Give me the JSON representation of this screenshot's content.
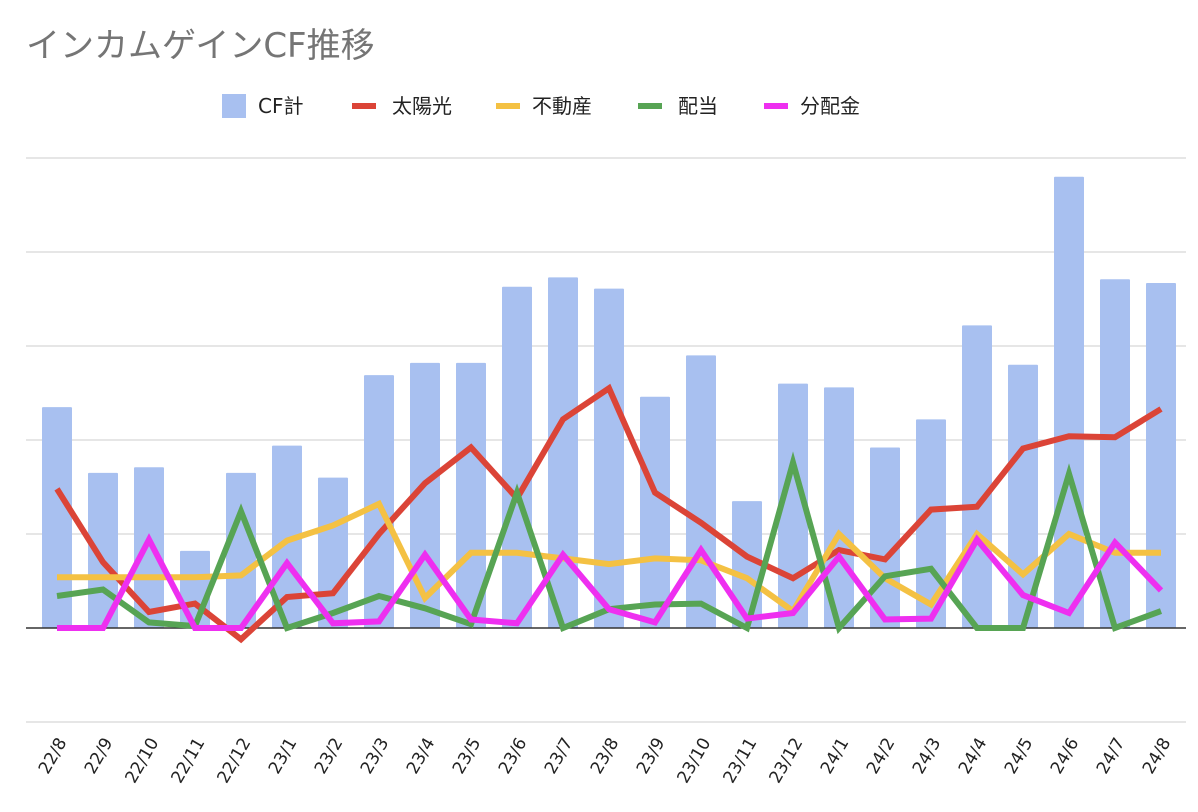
{
  "chart_data": {
    "type": "bar+line",
    "title": "インカムゲインCF推移",
    "categories": [
      "22/8",
      "22/9",
      "22/10",
      "22/11",
      "22/12",
      "23/1",
      "23/2",
      "23/3",
      "23/4",
      "23/5",
      "23/6",
      "23/7",
      "23/8",
      "23/9",
      "23/10",
      "23/11",
      "23/12",
      "24/1",
      "24/2",
      "24/3",
      "24/4",
      "24/5",
      "24/6",
      "24/7",
      "24/8"
    ],
    "ylim": [
      -1,
      5
    ],
    "gridlines": [
      -1,
      0,
      1,
      2,
      3,
      4,
      5
    ],
    "y_tick_labels_visible": false,
    "legend_position": "top",
    "series": [
      {
        "name": "CF計",
        "type": "bar",
        "color": "#a8c0f0",
        "values": [
          2.35,
          1.65,
          1.71,
          0.82,
          1.65,
          1.94,
          1.6,
          2.69,
          2.82,
          2.82,
          3.63,
          3.73,
          3.61,
          2.46,
          2.9,
          1.35,
          2.6,
          2.56,
          1.92,
          2.22,
          3.22,
          2.8,
          4.8,
          3.71,
          3.67
        ]
      },
      {
        "name": "太陽光",
        "type": "line",
        "color": "#db4437",
        "values": [
          1.48,
          0.7,
          0.17,
          0.26,
          -0.12,
          0.33,
          0.37,
          1.0,
          1.54,
          1.92,
          1.38,
          2.22,
          2.55,
          1.44,
          1.12,
          0.76,
          0.53,
          0.83,
          0.73,
          1.26,
          1.29,
          1.91,
          2.04,
          2.03,
          2.33
        ]
      },
      {
        "name": "不動産",
        "type": "line",
        "color": "#f4c143",
        "values": [
          0.54,
          0.54,
          0.54,
          0.54,
          0.56,
          0.93,
          1.09,
          1.32,
          0.32,
          0.8,
          0.8,
          0.74,
          0.68,
          0.74,
          0.72,
          0.53,
          0.18,
          1.0,
          0.53,
          0.25,
          1.0,
          0.57,
          1.0,
          0.8,
          0.8
        ]
      },
      {
        "name": "配当",
        "type": "line",
        "color": "#57a454",
        "values": [
          0.34,
          0.41,
          0.06,
          0.02,
          1.24,
          0.0,
          0.16,
          0.34,
          0.21,
          0.04,
          1.44,
          0.0,
          0.2,
          0.25,
          0.26,
          0.0,
          1.76,
          0.0,
          0.55,
          0.63,
          0.0,
          0.0,
          1.64,
          0.0,
          0.18
        ]
      },
      {
        "name": "分配金",
        "type": "line",
        "color": "#ee2ff0",
        "values": [
          0.0,
          0.0,
          0.94,
          0.0,
          0.0,
          0.69,
          0.05,
          0.07,
          0.78,
          0.09,
          0.05,
          0.78,
          0.2,
          0.06,
          0.83,
          0.1,
          0.16,
          0.76,
          0.09,
          0.1,
          0.94,
          0.35,
          0.16,
          0.91,
          0.4
        ]
      }
    ]
  }
}
